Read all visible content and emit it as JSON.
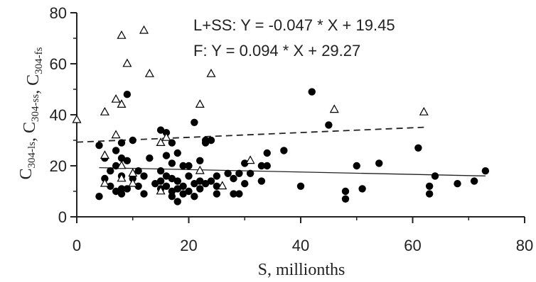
{
  "chart_data": {
    "type": "scatter",
    "title": "",
    "xlabel": "S, millionths",
    "ylabel_parts": [
      {
        "base": "C",
        "sub": "304-ls"
      },
      {
        "base": ", C",
        "sub": "304-ss"
      },
      {
        "base": ", C",
        "sub": "304-fs"
      }
    ],
    "xlim": [
      0,
      80
    ],
    "ylim": [
      0,
      80
    ],
    "xticks": [
      0,
      20,
      40,
      60,
      80
    ],
    "yticks": [
      0,
      20,
      40,
      60,
      80
    ],
    "grid": false,
    "annotations": [
      "L+SS: Y = -0.047 * X + 19.45",
      "F: Y = 0.094 * X + 29.27"
    ],
    "series": [
      {
        "marker": "filled-circle",
        "color": "#000000",
        "points": [
          [
            4,
            8
          ],
          [
            4,
            28
          ],
          [
            5,
            15
          ],
          [
            5,
            23
          ],
          [
            6,
            12
          ],
          [
            6,
            18
          ],
          [
            7,
            10
          ],
          [
            7,
            20
          ],
          [
            7,
            26
          ],
          [
            8,
            9
          ],
          [
            8,
            11
          ],
          [
            8,
            16
          ],
          [
            8,
            23
          ],
          [
            8,
            29
          ],
          [
            9,
            11
          ],
          [
            9,
            48
          ],
          [
            9,
            22
          ],
          [
            10,
            15
          ],
          [
            10,
            30
          ],
          [
            11,
            12
          ],
          [
            11,
            18
          ],
          [
            12,
            9
          ],
          [
            12,
            16
          ],
          [
            13,
            23
          ],
          [
            14,
            13
          ],
          [
            15,
            34
          ],
          [
            15,
            18
          ],
          [
            15,
            14
          ],
          [
            15,
            11
          ],
          [
            16,
            12
          ],
          [
            16,
            24
          ],
          [
            16,
            33
          ],
          [
            16,
            16
          ],
          [
            17,
            8
          ],
          [
            17,
            10
          ],
          [
            17,
            15
          ],
          [
            17,
            21
          ],
          [
            17,
            29
          ],
          [
            18,
            6
          ],
          [
            18,
            11
          ],
          [
            18,
            25
          ],
          [
            18,
            14
          ],
          [
            19,
            20
          ],
          [
            19,
            12
          ],
          [
            19,
            9
          ],
          [
            20,
            20
          ],
          [
            20,
            10
          ],
          [
            20,
            16
          ],
          [
            21,
            8
          ],
          [
            21,
            13
          ],
          [
            21,
            37
          ],
          [
            22,
            14
          ],
          [
            22,
            11
          ],
          [
            22,
            22
          ],
          [
            23,
            29
          ],
          [
            23,
            30
          ],
          [
            23,
            13
          ],
          [
            24,
            14
          ],
          [
            24,
            30
          ],
          [
            25,
            9
          ],
          [
            25,
            12
          ],
          [
            25,
            16
          ],
          [
            27,
            17
          ],
          [
            28,
            9
          ],
          [
            28,
            15
          ],
          [
            29,
            9
          ],
          [
            29,
            17
          ],
          [
            30,
            21
          ],
          [
            30,
            13
          ],
          [
            31,
            17
          ],
          [
            33,
            14
          ],
          [
            33,
            20
          ],
          [
            34,
            20
          ],
          [
            34,
            25
          ],
          [
            37,
            26
          ],
          [
            40,
            12
          ],
          [
            42,
            49
          ],
          [
            45,
            36
          ],
          [
            48,
            7
          ],
          [
            48,
            10
          ],
          [
            50,
            20
          ],
          [
            51,
            11
          ],
          [
            54,
            21
          ],
          [
            61,
            27
          ],
          [
            63,
            9
          ],
          [
            63,
            12
          ],
          [
            64,
            16
          ],
          [
            68,
            13
          ],
          [
            71,
            14
          ],
          [
            73,
            18
          ]
        ]
      },
      {
        "marker": "open-triangle",
        "color": "#000000",
        "points": [
          [
            0,
            38
          ],
          [
            5,
            41
          ],
          [
            5,
            13
          ],
          [
            5,
            24
          ],
          [
            7,
            46
          ],
          [
            7,
            32
          ],
          [
            8,
            44
          ],
          [
            8,
            71
          ],
          [
            8,
            15
          ],
          [
            8,
            20
          ],
          [
            9,
            60
          ],
          [
            10,
            17
          ],
          [
            10,
            13
          ],
          [
            12,
            73
          ],
          [
            13,
            56
          ],
          [
            15,
            29
          ],
          [
            15,
            10
          ],
          [
            16,
            31
          ],
          [
            22,
            44
          ],
          [
            22,
            18
          ],
          [
            24,
            56
          ],
          [
            26,
            12
          ],
          [
            31,
            22
          ],
          [
            46,
            42
          ],
          [
            62,
            41
          ]
        ]
      }
    ],
    "fit_lines": [
      {
        "label": "L+SS",
        "slope": -0.047,
        "intercept": 19.45,
        "x": [
          4,
          73
        ],
        "style": "solid"
      },
      {
        "label": "F",
        "slope": 0.094,
        "intercept": 29.27,
        "x": [
          0,
          62
        ],
        "style": "dashed"
      }
    ]
  }
}
